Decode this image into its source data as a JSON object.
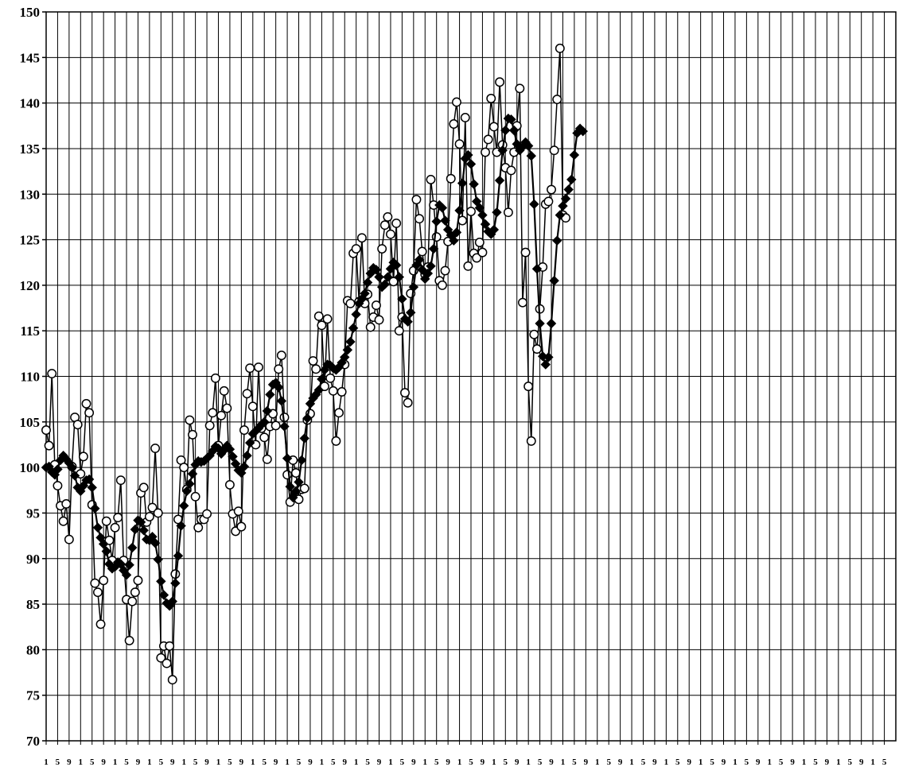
{
  "chart_data": {
    "type": "line",
    "title": "",
    "xlabel": "",
    "ylabel": "",
    "ylim": [
      70,
      150
    ],
    "yticks": [
      70,
      75,
      80,
      85,
      90,
      95,
      100,
      105,
      110,
      115,
      120,
      125,
      130,
      135,
      140,
      145,
      150
    ],
    "x_tick_labels": [
      "1",
      "5",
      "9",
      "1",
      "5",
      "9",
      "1",
      "5",
      "9",
      "1",
      "5",
      "9",
      "1",
      "5",
      "9",
      "1",
      "5",
      "9",
      "1",
      "5",
      "9",
      "1",
      "5",
      "9",
      "1",
      "5",
      "9",
      "1",
      "5",
      "9",
      "1",
      "5",
      "9",
      "1",
      "5",
      "9",
      "1",
      "5",
      "9",
      "1",
      "5",
      "9",
      "1",
      "5",
      "9",
      "1",
      "5",
      "9",
      "1",
      "5",
      "9",
      "1",
      "5",
      "9",
      "1",
      "5",
      "9",
      "1",
      "5",
      "9",
      "1",
      "5",
      "9",
      "1",
      "5",
      "9",
      "1",
      "5",
      "9",
      "1",
      "5",
      "9",
      "1",
      "5"
    ],
    "grid": true,
    "legend": "none",
    "colors": {
      "line": "#000000",
      "open_marker_fill": "#ffffff",
      "background": "#ffffff"
    },
    "series": [
      {
        "marker": "circle-open",
        "values": [
          104.1,
          102.4,
          110.3,
          100.3,
          98.0,
          95.8,
          94.1,
          96.0,
          92.1,
          100.1,
          105.5,
          104.7,
          99.3,
          101.2,
          107.0,
          106.0,
          95.9,
          87.3,
          86.3,
          82.8,
          87.6,
          94.1,
          92.0,
          89.8,
          93.4,
          94.5,
          98.6,
          89.8,
          85.5,
          81.0,
          85.3,
          86.3,
          87.6,
          97.2,
          97.8,
          94.0,
          94.6,
          95.6,
          102.1,
          95.0,
          79.1,
          80.4,
          78.5,
          80.4,
          76.7,
          88.3,
          94.3,
          100.8,
          100.0,
          97.6,
          105.2,
          103.6,
          96.8,
          93.4,
          94.3,
          94.3,
          94.9,
          104.6,
          106.0,
          109.8,
          102.4,
          105.7,
          108.4,
          106.5,
          98.1,
          94.9,
          93.0,
          95.2,
          93.5,
          104.1,
          108.1,
          110.9,
          106.7,
          102.5,
          111.0,
          104.3,
          103.3,
          100.9,
          104.5,
          105.9,
          104.6,
          110.8,
          112.3,
          105.5,
          99.2,
          96.2,
          100.8,
          99.4,
          96.5,
          97.6,
          97.7,
          105.2,
          105.9,
          111.7,
          110.8,
          116.6,
          115.6,
          108.9,
          116.3,
          109.8,
          108.4,
          102.9,
          106.0,
          108.3,
          111.3,
          118.3,
          118.0,
          123.5,
          124.0,
          118.2,
          125.2,
          118.0,
          119.0,
          115.4,
          116.5,
          117.8,
          116.2,
          124.0,
          126.6,
          127.5,
          125.6,
          120.4,
          126.8,
          115.0,
          116.5,
          108.2,
          107.1,
          119.1,
          121.6,
          129.4,
          127.3,
          123.7,
          121.2,
          122.0,
          131.6,
          128.8,
          125.3,
          120.5,
          120.0,
          121.6,
          124.8,
          131.7,
          137.7,
          140.1,
          135.5,
          127.1,
          138.4,
          122.1,
          128.1,
          123.5,
          123.0,
          124.7,
          123.6,
          134.6,
          136.0,
          140.5,
          137.4,
          134.6,
          142.3,
          135.4,
          132.9,
          128.0,
          132.6,
          134.6,
          137.5,
          141.6,
          118.1,
          123.6,
          108.9,
          102.9,
          114.6,
          113.0,
          117.4,
          122.0,
          128.9,
          129.2,
          130.5,
          134.8,
          140.4,
          146.0,
          127.7,
          127.4
        ]
      },
      {
        "marker": "diamond-filled",
        "values": [
          100.0,
          100.1,
          99.5,
          99.2,
          99.8,
          100.8,
          101.3,
          100.9,
          100.5,
          100.0,
          99.1,
          97.8,
          97.4,
          98.0,
          98.6,
          98.7,
          97.8,
          95.5,
          93.4,
          92.3,
          91.6,
          90.8,
          89.4,
          88.9,
          89.1,
          89.6,
          89.4,
          88.7,
          88.2,
          89.3,
          91.2,
          93.2,
          94.2,
          94.0,
          93.1,
          92.1,
          92.0,
          92.4,
          91.7,
          89.9,
          87.5,
          86.0,
          85.1,
          84.8,
          85.3,
          87.3,
          90.3,
          93.6,
          95.8,
          97.4,
          98.2,
          99.3,
          100.3,
          100.7,
          100.6,
          100.7,
          101.0,
          101.3,
          101.8,
          102.3,
          102.1,
          101.5,
          101.9,
          102.4,
          102.0,
          101.2,
          100.4,
          99.7,
          99.4,
          100.1,
          101.3,
          102.7,
          103.7,
          104.0,
          104.3,
          104.7,
          105.0,
          106.2,
          108.0,
          109.1,
          109.3,
          108.8,
          107.3,
          104.5,
          101.0,
          97.9,
          96.7,
          97.4,
          98.4,
          100.8,
          103.2,
          105.4,
          107.0,
          107.6,
          108.0,
          108.5,
          109.7,
          110.7,
          111.3,
          111.2,
          110.9,
          110.7,
          111.0,
          111.5,
          112.1,
          112.9,
          113.8,
          115.3,
          116.8,
          118.0,
          118.5,
          119.1,
          120.3,
          121.3,
          121.9,
          121.7,
          120.9,
          119.8,
          120.1,
          120.9,
          121.8,
          122.5,
          122.2,
          120.9,
          118.5,
          116.3,
          116.0,
          117.0,
          119.8,
          122.2,
          122.8,
          121.7,
          120.7,
          121.3,
          122.1,
          124.0,
          127.0,
          128.8,
          128.5,
          127.1,
          126.1,
          125.5,
          124.9,
          125.8,
          128.2,
          131.2,
          133.9,
          134.3,
          133.3,
          131.1,
          129.2,
          128.5,
          127.7,
          126.7,
          125.9,
          125.6,
          126.1,
          128.0,
          131.5,
          134.8,
          137.0,
          138.3,
          138.2,
          137.0,
          135.5,
          134.8,
          135.2,
          135.7,
          135.3,
          134.2,
          128.9,
          121.8,
          115.8,
          112.2,
          111.3,
          112.1,
          115.8,
          120.5,
          124.9,
          127.7,
          128.7,
          129.5,
          130.5,
          131.6,
          134.3,
          136.7,
          137.2,
          136.9
        ]
      }
    ]
  }
}
